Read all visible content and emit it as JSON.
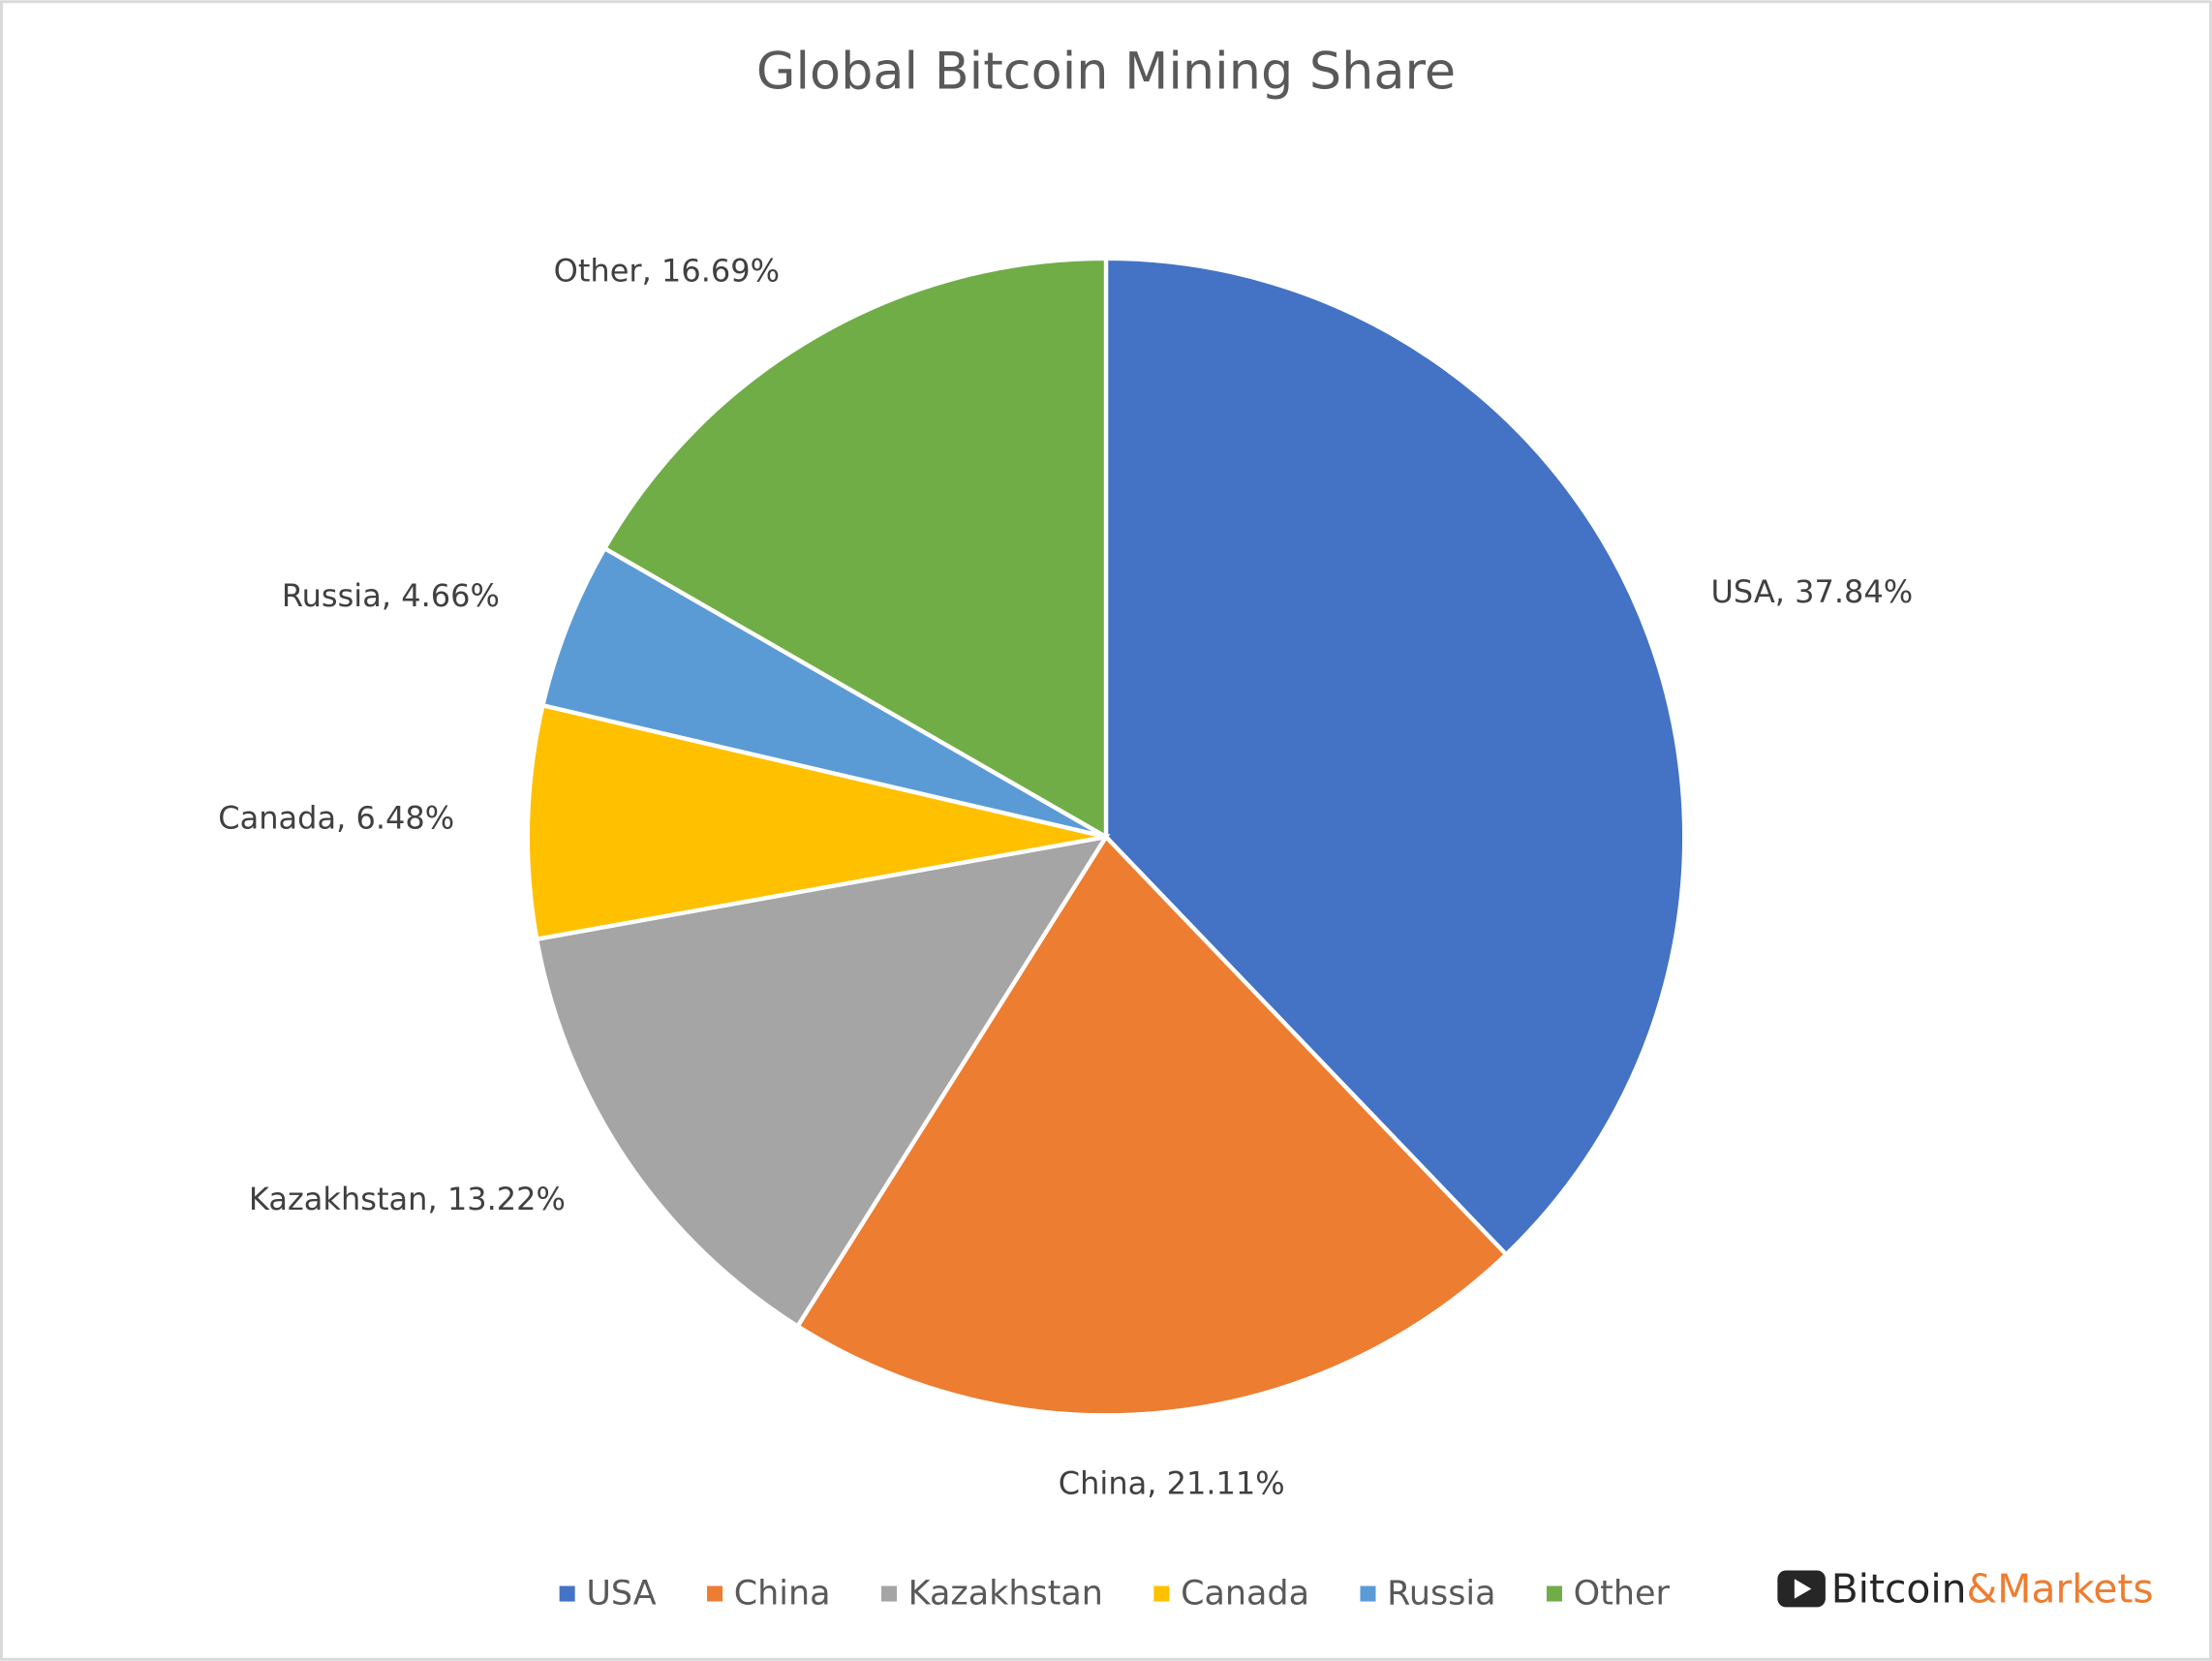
{
  "chart_data": {
    "type": "pie",
    "title": "Global Bitcoin Mining Share",
    "categories": [
      "USA",
      "China",
      "Kazakhstan",
      "Canada",
      "Russia",
      "Other"
    ],
    "values": [
      37.84,
      21.11,
      13.22,
      6.48,
      4.66,
      16.69
    ],
    "value_labels": [
      "USA, 37.84%",
      "China, 21.11%",
      "Kazakhstan, 13.22%",
      "Canada, 6.48%",
      "Russia, 4.66%",
      "Other, 16.69%"
    ],
    "colors": [
      "#4472c4",
      "#ed7d31",
      "#a5a5a5",
      "#ffc000",
      "#5b9bd5",
      "#70ad47"
    ],
    "legend": "bottom"
  },
  "watermark": {
    "brand": "Bitcoin",
    "suffix": "&Markets"
  }
}
